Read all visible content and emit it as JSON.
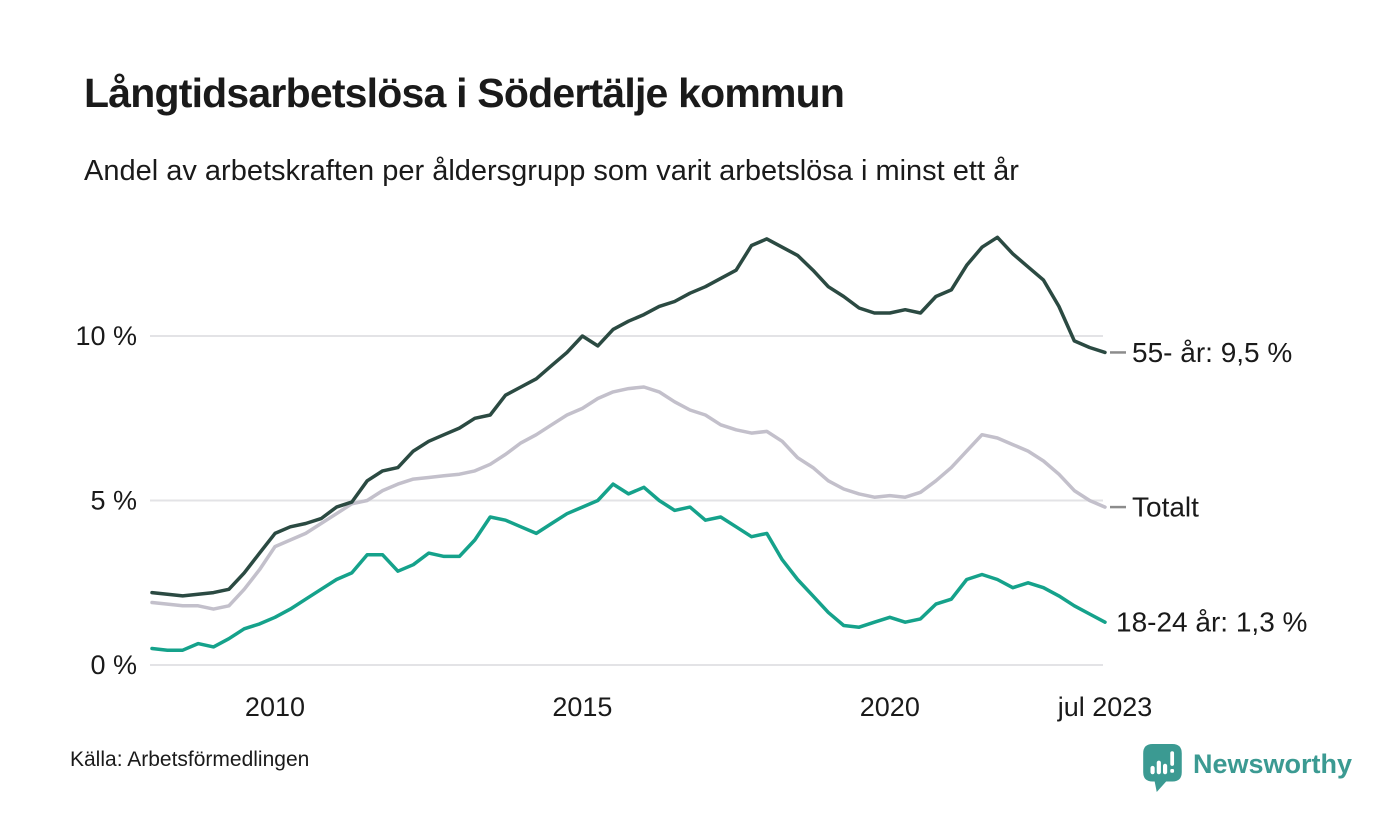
{
  "header": {
    "title": "Långtidsarbetslösa i Södertälje kommun",
    "subtitle": "Andel av arbetskraften per åldersgrupp som varit arbetslösa i minst ett år"
  },
  "footer": {
    "source": "Källa: Arbetsförmedlingen",
    "brand": "Newsworthy",
    "brand_color": "#3b9a92",
    "brand_icon": "bar-chart-speech-bubble-icon",
    "brand_icon_bar_color": "#ffffff"
  },
  "chart_data": {
    "type": "line",
    "title": "Långtidsarbetslösa i Södertälje kommun",
    "subtitle": "Andel av arbetskraften per åldersgrupp som varit arbetslösa i minst ett år",
    "xlabel": "",
    "ylabel": "",
    "xlim": [
      2008,
      2023.5
    ],
    "ylim": [
      0,
      13.6
    ],
    "grid": "horizontal",
    "grid_color": "#e3e3e6",
    "text_color": "#1a1a1a",
    "leader_dash_color": "#8c8c8c",
    "legend_position": "right-end-labels",
    "y_ticks": [
      {
        "value": 0,
        "label": "0 %"
      },
      {
        "value": 5,
        "label": "5 %"
      },
      {
        "value": 10,
        "label": "10 %"
      }
    ],
    "x_ticks": [
      {
        "value": 2010,
        "label": "2010"
      },
      {
        "value": 2015,
        "label": "2015"
      },
      {
        "value": 2020,
        "label": "2020"
      },
      {
        "value": 2023.5,
        "label": "jul 2023"
      }
    ],
    "x": [
      2008,
      2008.25,
      2008.5,
      2008.75,
      2009,
      2009.25,
      2009.5,
      2009.75,
      2010,
      2010.25,
      2010.5,
      2010.75,
      2011,
      2011.25,
      2011.5,
      2011.75,
      2012,
      2012.25,
      2012.5,
      2012.75,
      2013,
      2013.25,
      2013.5,
      2013.75,
      2014,
      2014.25,
      2014.5,
      2014.75,
      2015,
      2015.25,
      2015.5,
      2015.75,
      2016,
      2016.25,
      2016.5,
      2016.75,
      2017,
      2017.25,
      2017.5,
      2017.75,
      2018,
      2018.25,
      2018.5,
      2018.75,
      2019,
      2019.25,
      2019.5,
      2019.75,
      2020,
      2020.25,
      2020.5,
      2020.75,
      2021,
      2021.25,
      2021.5,
      2021.75,
      2022,
      2022.25,
      2022.5,
      2022.75,
      2023,
      2023.25,
      2023.5
    ],
    "series": [
      {
        "id": "55-ar",
        "name": "55- år",
        "end_label": "55- år: 9,5 %",
        "end_value_label": "9,5 %",
        "color": "#2b4a42",
        "dash": true,
        "z": 1,
        "values": [
          2.2,
          2.15,
          2.1,
          2.15,
          2.2,
          2.3,
          2.8,
          3.4,
          4.0,
          4.2,
          4.3,
          4.45,
          4.8,
          4.95,
          5.6,
          5.9,
          6.0,
          6.5,
          6.8,
          7.0,
          7.2,
          7.5,
          7.6,
          8.2,
          8.45,
          8.7,
          9.1,
          9.5,
          10.0,
          9.7,
          10.2,
          10.45,
          10.65,
          10.9,
          11.05,
          11.3,
          11.5,
          11.75,
          12.0,
          12.75,
          12.95,
          12.7,
          12.45,
          12.0,
          11.5,
          11.2,
          10.85,
          10.7,
          10.7,
          10.8,
          10.7,
          11.2,
          11.4,
          12.15,
          12.7,
          13.0,
          12.5,
          12.1,
          11.7,
          10.9,
          9.85,
          9.65,
          9.5
        ]
      },
      {
        "id": "totalt",
        "name": "Totalt",
        "end_label": "Totalt",
        "end_value_label": "",
        "color": "#c3c0cb",
        "dash": true,
        "z": 0,
        "values": [
          1.9,
          1.85,
          1.8,
          1.8,
          1.7,
          1.8,
          2.3,
          2.9,
          3.6,
          3.8,
          4.0,
          4.3,
          4.6,
          4.9,
          5.0,
          5.3,
          5.5,
          5.65,
          5.7,
          5.75,
          5.8,
          5.9,
          6.1,
          6.4,
          6.75,
          7.0,
          7.3,
          7.6,
          7.8,
          8.1,
          8.3,
          8.4,
          8.45,
          8.3,
          8.0,
          7.75,
          7.6,
          7.3,
          7.15,
          7.05,
          7.1,
          6.8,
          6.3,
          6.0,
          5.6,
          5.35,
          5.2,
          5.1,
          5.15,
          5.1,
          5.25,
          5.6,
          6.0,
          6.5,
          7.0,
          6.9,
          6.7,
          6.5,
          6.2,
          5.8,
          5.3,
          5.0,
          4.8
        ]
      },
      {
        "id": "18-24-ar",
        "name": "18-24 år",
        "end_label": "18-24 år: 1,3 %",
        "end_value_label": "1,3 %",
        "color": "#15a28b",
        "dash": false,
        "z": 2,
        "values": [
          0.5,
          0.45,
          0.45,
          0.65,
          0.55,
          0.8,
          1.1,
          1.25,
          1.45,
          1.7,
          2.0,
          2.3,
          2.6,
          2.8,
          3.35,
          3.35,
          2.85,
          3.05,
          3.4,
          3.3,
          3.3,
          3.8,
          4.5,
          4.4,
          4.2,
          4.0,
          4.3,
          4.6,
          4.8,
          5.0,
          5.5,
          5.2,
          5.4,
          5.0,
          4.7,
          4.8,
          4.4,
          4.5,
          4.2,
          3.9,
          4.0,
          3.2,
          2.6,
          2.1,
          1.6,
          1.2,
          1.15,
          1.3,
          1.45,
          1.3,
          1.4,
          1.85,
          2.0,
          2.6,
          2.75,
          2.6,
          2.35,
          2.5,
          2.35,
          2.1,
          1.8,
          1.55,
          1.3
        ]
      }
    ]
  }
}
